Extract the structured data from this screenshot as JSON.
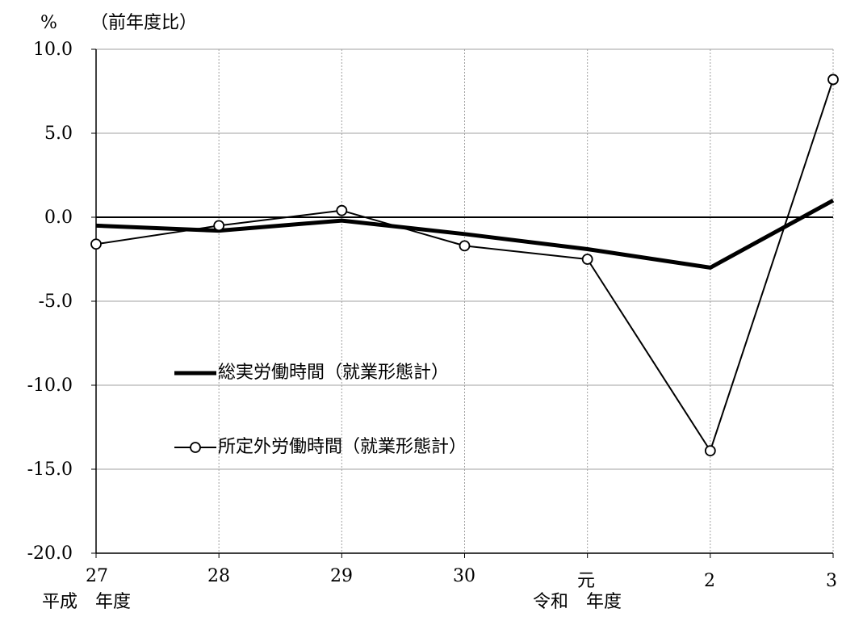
{
  "chart_data": {
    "type": "line",
    "y_unit_label": "%",
    "y_note": "（前年度比）",
    "y_ticks": [
      "10.0",
      "5.0",
      "0.0",
      "-5.0",
      "-10.0",
      "-15.0",
      "-20.0"
    ],
    "ylim": [
      -20,
      10
    ],
    "categories": [
      "27",
      "28",
      "29",
      "30",
      "元",
      "2",
      "3"
    ],
    "era_labels": [
      "平成　年度",
      "令和　年度"
    ],
    "grid": {
      "horizontal": true,
      "vertical": "dotted"
    },
    "series": [
      {
        "name": "総実労働時間（就業形態計）",
        "values": [
          -0.5,
          -0.8,
          -0.2,
          -1.0,
          -1.9,
          -3.0,
          1.0
        ],
        "color": "#000000",
        "marker": "none"
      },
      {
        "name": "所定外労働時間（就業形態計）",
        "values": [
          -1.6,
          -0.5,
          0.4,
          -1.7,
          -2.5,
          -13.9,
          8.2
        ],
        "color": "#000000",
        "marker": "open-circle"
      }
    ],
    "legend_position": "left-center"
  }
}
